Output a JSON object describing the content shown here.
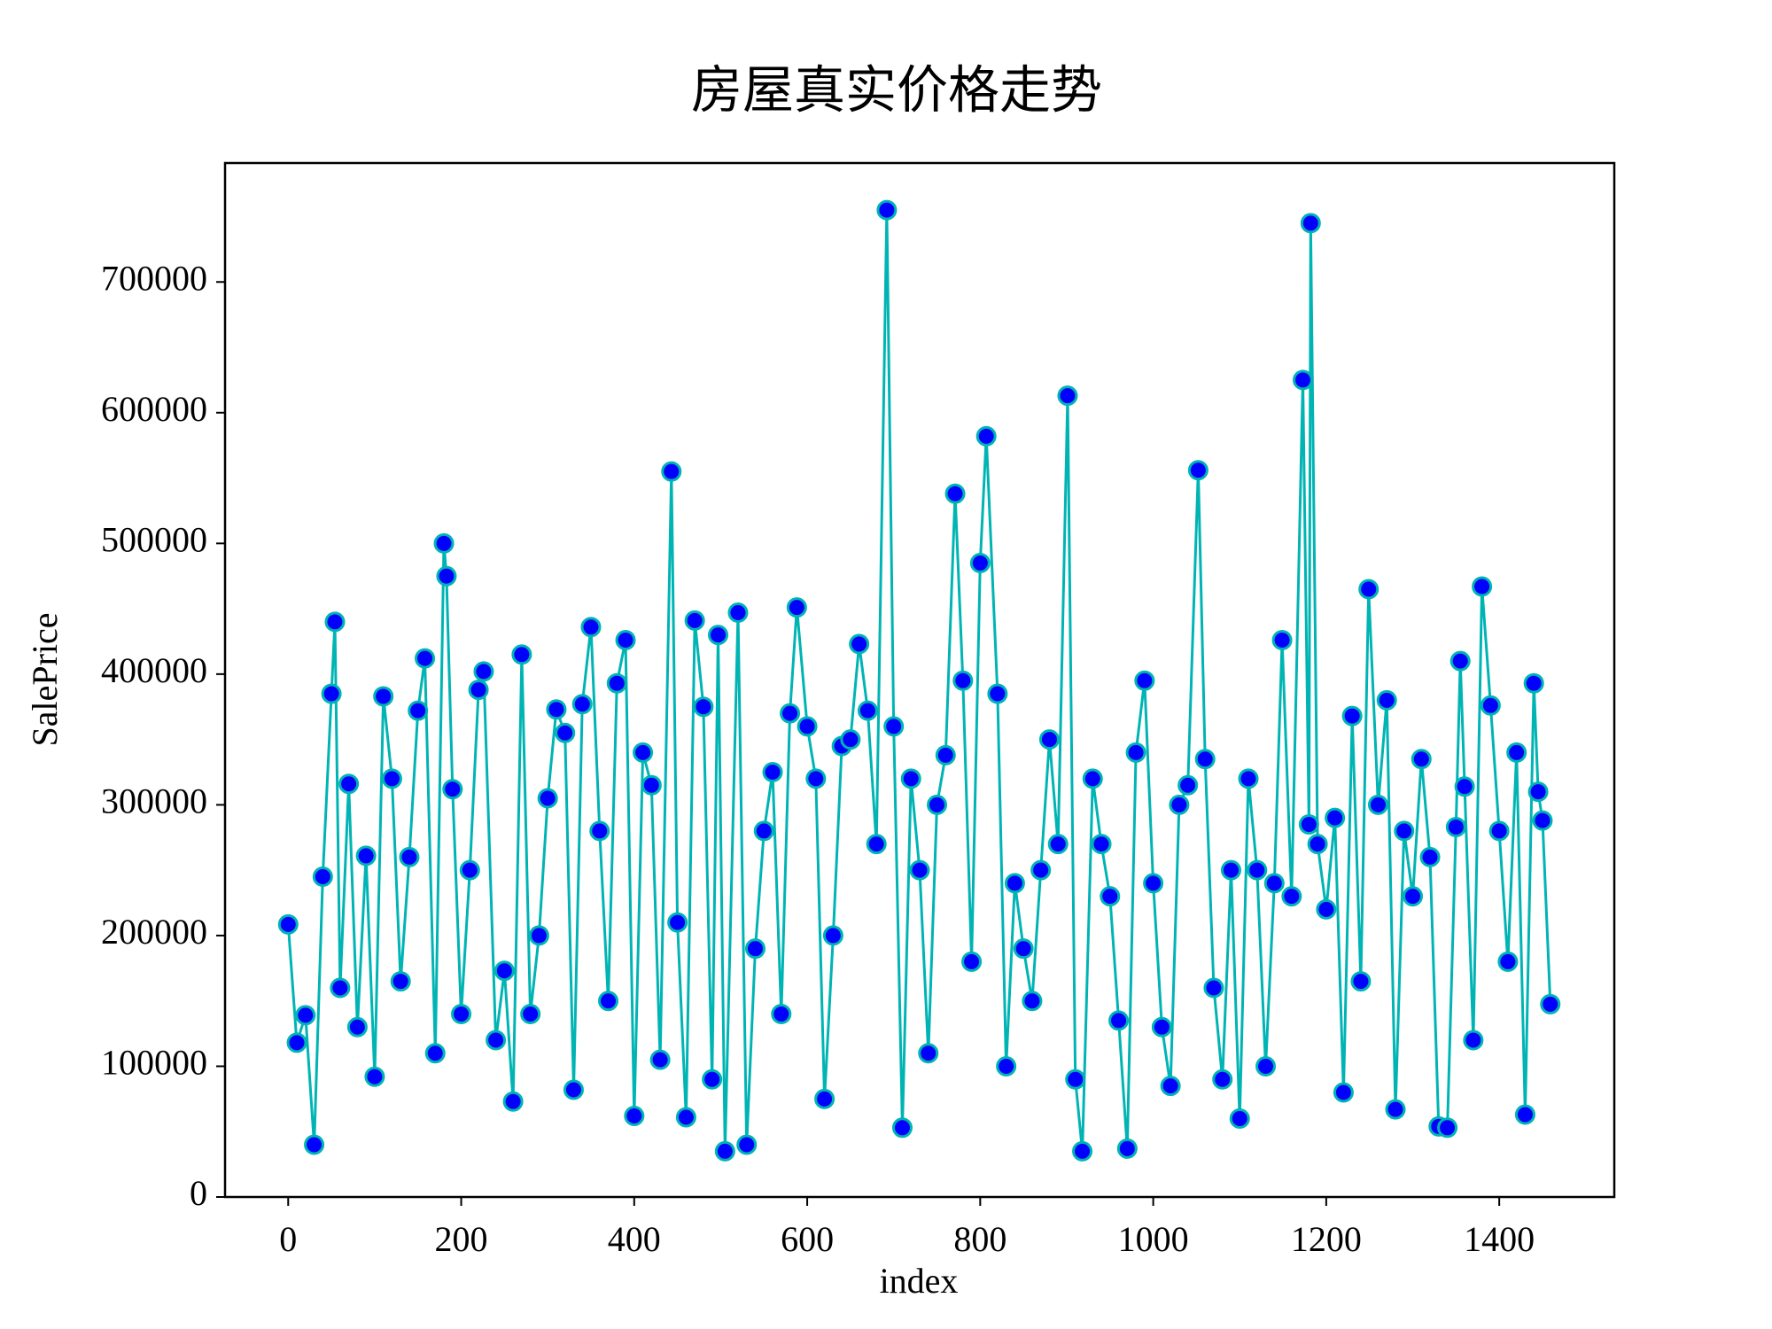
{
  "chart_data": {
    "type": "line",
    "title": "房屋真实价格走势",
    "xlabel": "index",
    "ylabel": "SalePrice",
    "color": "#00b4b4",
    "marker_color": "#0000ff",
    "x": [
      0,
      10,
      20,
      30,
      40,
      50,
      54,
      60,
      70,
      80,
      90,
      100,
      110,
      120,
      130,
      140,
      150,
      158,
      170,
      180,
      183,
      190,
      200,
      210,
      220,
      226,
      240,
      250,
      260,
      270,
      280,
      290,
      300,
      310,
      320,
      330,
      340,
      350,
      360,
      370,
      380,
      390,
      400,
      410,
      420,
      430,
      443,
      450,
      460,
      470,
      480,
      490,
      497,
      505,
      520,
      530,
      540,
      550,
      560,
      570,
      580,
      588,
      600,
      610,
      620,
      630,
      640,
      650,
      660,
      670,
      680,
      692,
      700,
      710,
      720,
      730,
      740,
      750,
      760,
      771,
      780,
      790,
      800,
      807,
      820,
      830,
      840,
      850,
      860,
      870,
      880,
      890,
      901,
      910,
      918,
      930,
      940,
      950,
      960,
      970,
      980,
      990,
      1000,
      1010,
      1020,
      1030,
      1040,
      1052,
      1060,
      1070,
      1080,
      1090,
      1100,
      1110,
      1120,
      1130,
      1140,
      1149,
      1160,
      1173,
      1180,
      1182,
      1190,
      1200,
      1210,
      1220,
      1230,
      1240,
      1249,
      1260,
      1270,
      1280,
      1290,
      1300,
      1310,
      1320,
      1330,
      1340,
      1350,
      1355,
      1360,
      1370,
      1380,
      1390,
      1400,
      1410,
      1420,
      1430,
      1440,
      1445,
      1450,
      1459
    ],
    "values": [
      208500,
      118000,
      139000,
      40000,
      245000,
      385000,
      440000,
      160000,
      316000,
      130000,
      261000,
      92000,
      383000,
      320000,
      165000,
      260000,
      372000,
      412000,
      110000,
      500000,
      475000,
      312000,
      140000,
      250000,
      388000,
      402000,
      120000,
      173000,
      73000,
      415000,
      140000,
      200000,
      305000,
      373000,
      355000,
      82000,
      377000,
      436000,
      280000,
      150000,
      393000,
      426000,
      62000,
      340000,
      315000,
      105000,
      555000,
      210000,
      61000,
      441000,
      375000,
      90000,
      430000,
      35000,
      447000,
      40000,
      190000,
      280000,
      325000,
      140000,
      370000,
      451000,
      360000,
      320000,
      75000,
      200000,
      345000,
      350000,
      423000,
      372000,
      270000,
      755000,
      360000,
      53000,
      320000,
      250000,
      110000,
      300000,
      338000,
      538000,
      395000,
      180000,
      485000,
      582000,
      385000,
      100000,
      240000,
      190000,
      150000,
      250000,
      350000,
      270000,
      613000,
      90000,
      35000,
      320000,
      270000,
      230000,
      135000,
      37000,
      340000,
      395000,
      240000,
      130000,
      85000,
      300000,
      315000,
      556000,
      335000,
      160000,
      90000,
      250000,
      60000,
      320000,
      250000,
      100000,
      240000,
      426000,
      230000,
      625000,
      285000,
      745000,
      270000,
      220000,
      290000,
      80000,
      368000,
      165000,
      465000,
      300000,
      380000,
      67000,
      280000,
      230000,
      335000,
      260000,
      54000,
      53000,
      283000,
      410000,
      314000,
      120000,
      467000,
      376000,
      280000,
      180000,
      340000,
      63000,
      393000,
      310000,
      288000,
      147500
    ],
    "xlim": [
      -73,
      1533
    ],
    "ylim": [
      0,
      791000
    ],
    "xticks": [
      0,
      200,
      400,
      600,
      800,
      1000,
      1200,
      1400
    ],
    "yticks": [
      0,
      100000,
      200000,
      300000,
      400000,
      500000,
      600000,
      700000
    ]
  }
}
